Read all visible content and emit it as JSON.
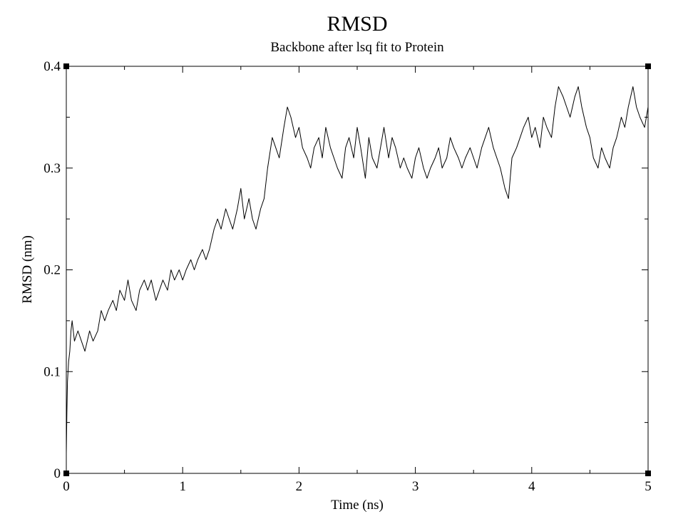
{
  "chart_data": {
    "type": "line",
    "title": "RMSD",
    "subtitle": "Backbone after lsq fit to Protein",
    "xlabel": "Time (ns)",
    "ylabel": "RMSD (nm)",
    "xlim": [
      0,
      5
    ],
    "ylim": [
      0,
      0.4
    ],
    "xticks": [
      {
        "value": 0,
        "label": "0"
      },
      {
        "value": 1,
        "label": "1"
      },
      {
        "value": 2,
        "label": "2"
      },
      {
        "value": 3,
        "label": "3"
      },
      {
        "value": 4,
        "label": "4"
      },
      {
        "value": 5,
        "label": "5"
      }
    ],
    "yticks": [
      {
        "value": 0,
        "label": "0"
      },
      {
        "value": 0.1,
        "label": "0.1"
      },
      {
        "value": 0.2,
        "label": "0.2"
      },
      {
        "value": 0.3,
        "label": "0.3"
      },
      {
        "value": 0.4,
        "label": "0.4"
      }
    ],
    "x_minor_step": 0.5,
    "y_minor_step": 0.05,
    "grid": false,
    "line_color": "#000000",
    "series": [
      {
        "x": [
          0,
          0.005,
          0.01,
          0.02,
          0.03,
          0.04,
          0.05,
          0.07,
          0.1,
          0.13,
          0.16,
          0.2,
          0.23,
          0.27,
          0.3,
          0.33,
          0.36,
          0.4,
          0.43,
          0.46,
          0.5,
          0.53,
          0.56,
          0.6,
          0.63,
          0.67,
          0.7,
          0.73,
          0.77,
          0.8,
          0.83,
          0.87,
          0.9,
          0.93,
          0.97,
          1.0,
          1.03,
          1.07,
          1.1,
          1.13,
          1.17,
          1.2,
          1.23,
          1.27,
          1.3,
          1.33,
          1.37,
          1.4,
          1.43,
          1.47,
          1.5,
          1.53,
          1.57,
          1.6,
          1.63,
          1.67,
          1.7,
          1.73,
          1.77,
          1.8,
          1.83,
          1.87,
          1.9,
          1.93,
          1.97,
          2.0,
          2.03,
          2.07,
          2.1,
          2.13,
          2.17,
          2.2,
          2.23,
          2.27,
          2.3,
          2.33,
          2.37,
          2.4,
          2.43,
          2.47,
          2.5,
          2.53,
          2.57,
          2.6,
          2.63,
          2.67,
          2.7,
          2.73,
          2.77,
          2.8,
          2.83,
          2.87,
          2.9,
          2.93,
          2.97,
          3.0,
          3.03,
          3.07,
          3.1,
          3.13,
          3.17,
          3.2,
          3.23,
          3.27,
          3.3,
          3.33,
          3.37,
          3.4,
          3.43,
          3.47,
          3.5,
          3.53,
          3.57,
          3.6,
          3.63,
          3.67,
          3.7,
          3.73,
          3.77,
          3.8,
          3.83,
          3.87,
          3.9,
          3.93,
          3.97,
          4.0,
          4.03,
          4.07,
          4.1,
          4.13,
          4.17,
          4.2,
          4.23,
          4.27,
          4.3,
          4.33,
          4.37,
          4.4,
          4.43,
          4.47,
          4.5,
          4.53,
          4.57,
          4.6,
          4.63,
          4.67,
          4.7,
          4.73,
          4.77,
          4.8,
          4.83,
          4.87,
          4.9,
          4.93,
          4.97,
          5.0
        ],
        "y": [
          0.02,
          0.06,
          0.09,
          0.11,
          0.12,
          0.14,
          0.15,
          0.13,
          0.14,
          0.13,
          0.12,
          0.14,
          0.13,
          0.14,
          0.16,
          0.15,
          0.16,
          0.17,
          0.16,
          0.18,
          0.17,
          0.19,
          0.17,
          0.16,
          0.18,
          0.19,
          0.18,
          0.19,
          0.17,
          0.18,
          0.19,
          0.18,
          0.2,
          0.19,
          0.2,
          0.19,
          0.2,
          0.21,
          0.2,
          0.21,
          0.22,
          0.21,
          0.22,
          0.24,
          0.25,
          0.24,
          0.26,
          0.25,
          0.24,
          0.26,
          0.28,
          0.25,
          0.27,
          0.25,
          0.24,
          0.26,
          0.27,
          0.3,
          0.33,
          0.32,
          0.31,
          0.34,
          0.36,
          0.35,
          0.33,
          0.34,
          0.32,
          0.31,
          0.3,
          0.32,
          0.33,
          0.31,
          0.34,
          0.32,
          0.31,
          0.3,
          0.29,
          0.32,
          0.33,
          0.31,
          0.34,
          0.32,
          0.29,
          0.33,
          0.31,
          0.3,
          0.32,
          0.34,
          0.31,
          0.33,
          0.32,
          0.3,
          0.31,
          0.3,
          0.29,
          0.31,
          0.32,
          0.3,
          0.29,
          0.3,
          0.31,
          0.32,
          0.3,
          0.31,
          0.33,
          0.32,
          0.31,
          0.3,
          0.31,
          0.32,
          0.31,
          0.3,
          0.32,
          0.33,
          0.34,
          0.32,
          0.31,
          0.3,
          0.28,
          0.27,
          0.31,
          0.32,
          0.33,
          0.34,
          0.35,
          0.33,
          0.34,
          0.32,
          0.35,
          0.34,
          0.33,
          0.36,
          0.38,
          0.37,
          0.36,
          0.35,
          0.37,
          0.38,
          0.36,
          0.34,
          0.33,
          0.31,
          0.3,
          0.32,
          0.31,
          0.3,
          0.32,
          0.33,
          0.35,
          0.34,
          0.36,
          0.38,
          0.36,
          0.35,
          0.34,
          0.36
        ]
      }
    ]
  }
}
